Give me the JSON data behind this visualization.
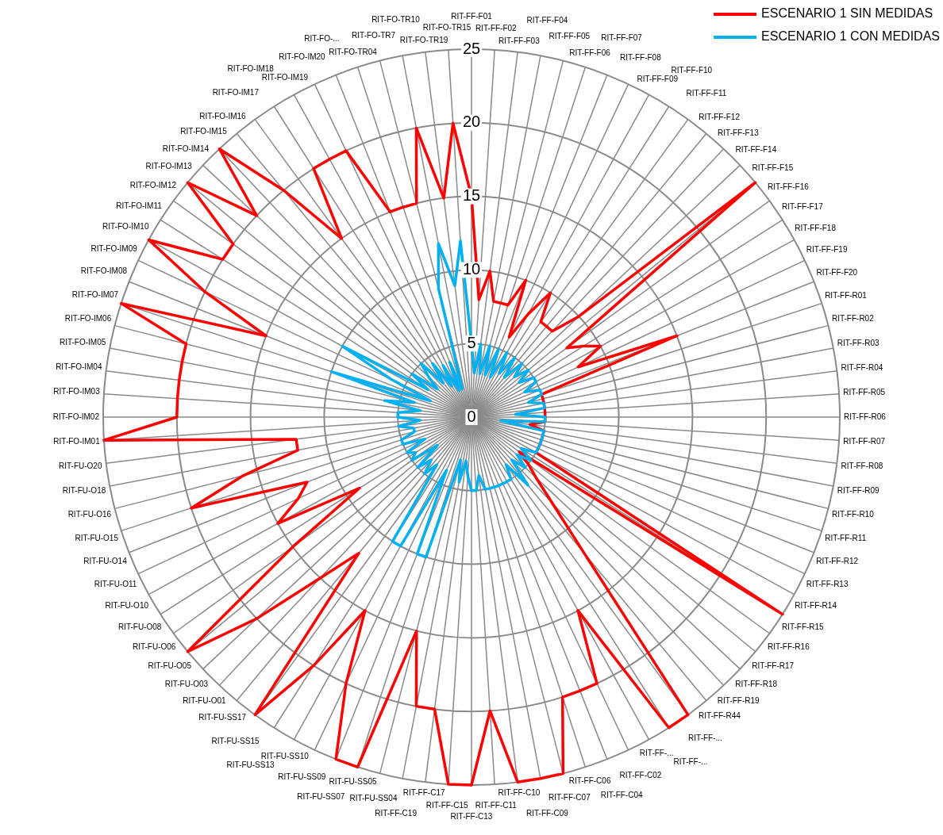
{
  "chart_data": {
    "type": "radar",
    "categories": [
      "RIT-FF-F01",
      "RIT-FF-F02",
      "RIT-FF-F03",
      "RIT-FF-F04",
      "RIT-FF-F05",
      "RIT-FF-F06",
      "RIT-FF-F07",
      "RIT-FF-F08",
      "RIT-FF-F09",
      "RIT-FF-F10",
      "RIT-FF-F11",
      "RIT-FF-F12",
      "RIT-FF-F13",
      "RIT-FF-F14",
      "RIT-FF-F15",
      "RIT-FF-F16",
      "RIT-FF-F17",
      "RIT-FF-F18",
      "RIT-FF-F19",
      "RIT-FF-F20",
      "RIT-FF-R01",
      "RIT-FF-R02",
      "RIT-FF-R03",
      "RIT-FF-R04",
      "RIT-FF-R05",
      "RIT-FF-R06",
      "RIT-FF-R07",
      "RIT-FF-R08",
      "RIT-FF-R09",
      "RIT-FF-R10",
      "RIT-FF-R11",
      "RIT-FF-R12",
      "RIT-FF-R13",
      "RIT-FF-R14",
      "RIT-FF-R15",
      "RIT-FF-R16",
      "RIT-FF-R17",
      "RIT-FF-R18",
      "RIT-FF-R19",
      "RIT-FF-R44",
      "RIT-FF-...",
      "RIT-FF-...",
      "RIT-FF-...",
      "RIT-FF-C02",
      "RIT-FF-C04",
      "RIT-FF-C06",
      "RIT-FF-C07",
      "RIT-FF-C09",
      "RIT-FF-C10",
      "RIT-FF-C11",
      "RIT-FF-C13",
      "RIT-FF-C15",
      "RIT-FF-C17",
      "RIT-FF-C19",
      "RIT-FU-SS04",
      "RIT-FU-SS05",
      "RIT-FU-SS07",
      "RIT-FU-SS09",
      "RIT-FU-SS10",
      "RIT-FU-SS13",
      "RIT-FU-SS15",
      "RIT-FU-SS17",
      "RIT-FU-O01",
      "RIT-FU-O03",
      "RIT-FU-O05",
      "RIT-FU-O06",
      "RIT-FU-O08",
      "RIT-FU-O10",
      "RIT-FU-O11",
      "RIT-FU-O14",
      "RIT-FU-O15",
      "RIT-FU-O16",
      "RIT-FU-O18",
      "RIT-FU-O20",
      "RIT-FO-IM01",
      "RIT-FO-IM02",
      "RIT-FO-IM03",
      "RIT-FO-IM04",
      "RIT-FO-IM05",
      "RIT-FO-IM06",
      "RIT-FO-IM07",
      "RIT-FO-IM08",
      "RIT-FO-IM09",
      "RIT-FO-IM10",
      "RIT-FO-IM11",
      "RIT-FO-IM12",
      "RIT-FO-IM13",
      "RIT-FO-IM14",
      "RIT-FO-IM15",
      "RIT-FO-IM16",
      "RIT-FO-IM17",
      "RIT-FO-IM18",
      "RIT-FO-IM19",
      "RIT-FO-IM20",
      "RIT-FO-...",
      "RIT-FO-TR04",
      "RIT-FO-TR7",
      "RIT-FO-TR10",
      "RIT-FO-TR19",
      "RIT-FO-TR15"
    ],
    "series": [
      {
        "name": "ESCENARIO 1 SIN MEDIDAS",
        "color": "#ff0000",
        "values": [
          15,
          8,
          10,
          8,
          8,
          8,
          10,
          6,
          8,
          10,
          8,
          8,
          8,
          10,
          25,
          8,
          9,
          10,
          8,
          15,
          5,
          5,
          5,
          5,
          5,
          5,
          5,
          4,
          5,
          5,
          5,
          5,
          5,
          5,
          25,
          4,
          5,
          6,
          8,
          12,
          25,
          25,
          15,
          20,
          20,
          20,
          25,
          25,
          25,
          20,
          25,
          25,
          20,
          20,
          15,
          25,
          25,
          20,
          15,
          20,
          25,
          12,
          15,
          20,
          25,
          15,
          9,
          15,
          13,
          12,
          20,
          16,
          12,
          12,
          25,
          20,
          20,
          20,
          20,
          20,
          25,
          15,
          20,
          25,
          20,
          20,
          25,
          20,
          25,
          20,
          15,
          20,
          20,
          20,
          15,
          15,
          15,
          20,
          15,
          20
        ]
      },
      {
        "name": "ESCENARIO 1 CON MEDIDAS",
        "color": "#00b0f0",
        "values": [
          5,
          3,
          5,
          3,
          5,
          3,
          5,
          3,
          5,
          3.5,
          5,
          3.5,
          5,
          4,
          5,
          4,
          5,
          5,
          4,
          5,
          5,
          4,
          5,
          5,
          3,
          5,
          5,
          2,
          5,
          5,
          5,
          5,
          5,
          5,
          4,
          5,
          4,
          5,
          4,
          6,
          4,
          5,
          5,
          5,
          5,
          5,
          5,
          5,
          4,
          5,
          5,
          4,
          3,
          4.5,
          3,
          10,
          10,
          4,
          10,
          10,
          4,
          5,
          4,
          5,
          3,
          5,
          4.5,
          5,
          3.5,
          5,
          5,
          4,
          4,
          5,
          3.5,
          5,
          5,
          3.5,
          6,
          4,
          10,
          3,
          6,
          10,
          3.5,
          5,
          3,
          4,
          5,
          3,
          4.5,
          2.5,
          4,
          2,
          4,
          2,
          9,
          12,
          9,
          12
        ]
      }
    ],
    "ylim": [
      0,
      25
    ],
    "yticks": [
      0,
      5,
      10,
      15,
      20,
      25
    ],
    "grid": true,
    "legend": "top right",
    "marker": "none"
  }
}
